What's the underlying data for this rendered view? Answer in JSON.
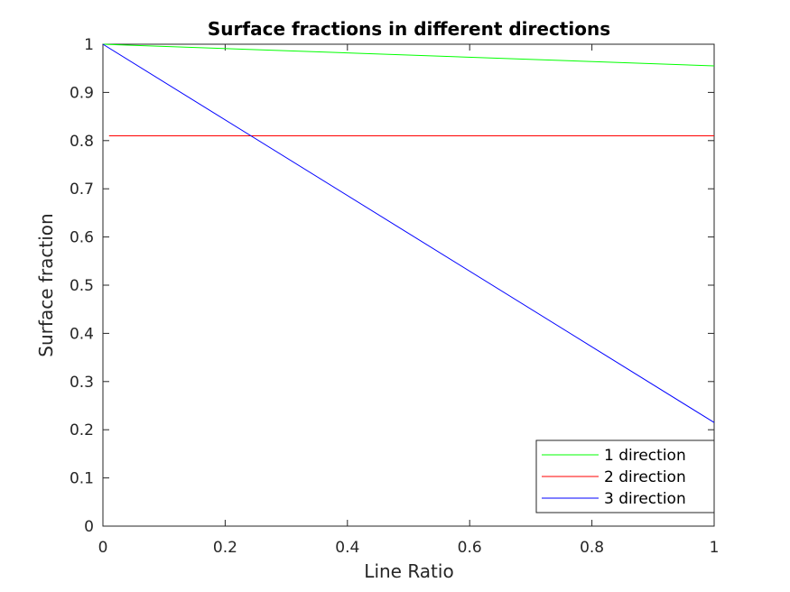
{
  "chart_data": {
    "type": "line",
    "title": "Surface fractions in different directions",
    "xlabel": "Line Ratio",
    "ylabel": "Surface fraction",
    "xlim": [
      0,
      1
    ],
    "ylim": [
      0,
      1
    ],
    "xticks": [
      0,
      0.2,
      0.4,
      0.6,
      0.8,
      1
    ],
    "xtick_labels": [
      "0",
      "0.2",
      "0.4",
      "0.6",
      "0.8",
      "1"
    ],
    "yticks": [
      0,
      0.1,
      0.2,
      0.3,
      0.4,
      0.5,
      0.6,
      0.7,
      0.8,
      0.9,
      1
    ],
    "ytick_labels": [
      "0",
      "0.1",
      "0.2",
      "0.3",
      "0.4",
      "0.5",
      "0.6",
      "0.7",
      "0.8",
      "0.9",
      "1"
    ],
    "grid": false,
    "legend_position": "bottom-right",
    "series": [
      {
        "name": "1 direction",
        "color": "#00ff00",
        "x": [
          0,
          1
        ],
        "y": [
          1.0,
          0.955
        ]
      },
      {
        "name": "2 direction",
        "color": "#ff0000",
        "x": [
          0.01,
          1
        ],
        "y": [
          0.81,
          0.81
        ]
      },
      {
        "name": "3 direction",
        "color": "#0000ff",
        "x": [
          0,
          1
        ],
        "y": [
          1.0,
          0.215
        ]
      }
    ]
  }
}
